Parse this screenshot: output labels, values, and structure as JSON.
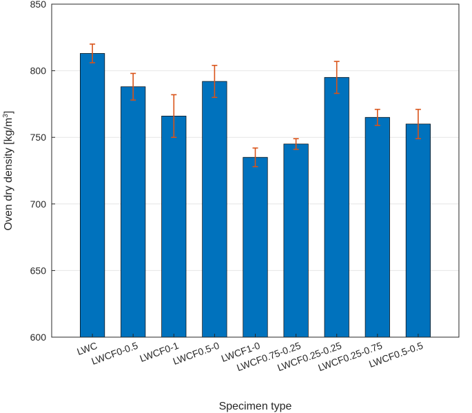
{
  "chart_data": {
    "type": "bar",
    "categories": [
      "LWC",
      "LWCF0-0.5",
      "LWCF0-1",
      "LWCF0.5-0",
      "LWCF1-0",
      "LWCF0.75-0.25",
      "LWCF0.25-0.25",
      "LWCF0.25-0.75",
      "LWCF0.5-0.5"
    ],
    "values": [
      813,
      788,
      766,
      792,
      735,
      745,
      795,
      765,
      760
    ],
    "error_low": [
      806,
      778,
      750,
      780,
      728,
      741,
      783,
      759,
      749
    ],
    "error_high": [
      820,
      798,
      782,
      804,
      742,
      749,
      807,
      771,
      771
    ],
    "xlabel": "Specimen type",
    "ylabel": "Oven dry density [kg/m",
    "ylabel_sup": "3",
    "ylabel_end": "]",
    "ylim": [
      600,
      850
    ],
    "yticks": [
      600,
      650,
      700,
      750,
      800,
      850
    ],
    "grid": true,
    "bar_color": "#0072bd",
    "error_color": "#d95319"
  }
}
